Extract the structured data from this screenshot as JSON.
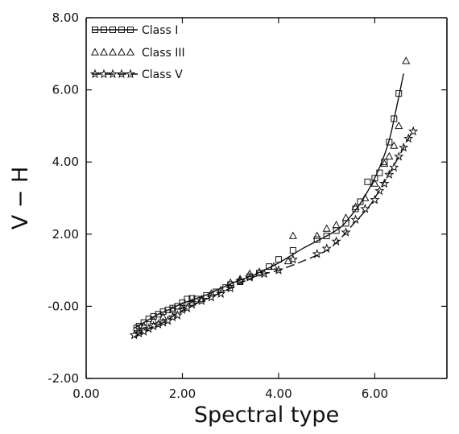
{
  "chart_data": {
    "type": "scatter",
    "title": "",
    "xlabel": "Spectral type",
    "ylabel": "V − H",
    "xlim": [
      0,
      7.5
    ],
    "ylim": [
      -2,
      8
    ],
    "xticks": [
      {
        "value": 0,
        "label": "0.00"
      },
      {
        "value": 2,
        "label": "2.00"
      },
      {
        "value": 4,
        "label": "4.00"
      },
      {
        "value": 6,
        "label": "6.00"
      }
    ],
    "yticks": [
      {
        "value": -2,
        "label": "-2.00"
      },
      {
        "value": 0,
        "label": "-0.00"
      },
      {
        "value": 2,
        "label": "2.00"
      },
      {
        "value": 4,
        "label": "4.00"
      },
      {
        "value": 6,
        "label": "6.00"
      },
      {
        "value": 8,
        "label": "8.00"
      }
    ],
    "grid": false,
    "legend_position": "top-left",
    "series": [
      {
        "name": "Class I",
        "marker": "square",
        "points": [
          [
            1.05,
            -0.6
          ],
          [
            1.1,
            -0.55
          ],
          [
            1.2,
            -0.45
          ],
          [
            1.3,
            -0.35
          ],
          [
            1.4,
            -0.28
          ],
          [
            1.5,
            -0.22
          ],
          [
            1.6,
            -0.15
          ],
          [
            1.7,
            -0.1
          ],
          [
            1.8,
            -0.05
          ],
          [
            1.9,
            0.0
          ],
          [
            2.0,
            0.1
          ],
          [
            2.1,
            0.2
          ],
          [
            2.2,
            0.22
          ],
          [
            2.3,
            0.2
          ],
          [
            2.5,
            0.3
          ],
          [
            2.7,
            0.4
          ],
          [
            2.9,
            0.52
          ],
          [
            3.0,
            0.6
          ],
          [
            3.2,
            0.68
          ],
          [
            3.4,
            0.82
          ],
          [
            3.6,
            0.92
          ],
          [
            3.8,
            1.1
          ],
          [
            4.0,
            1.3
          ],
          [
            4.3,
            1.55
          ],
          [
            4.8,
            1.85
          ],
          [
            5.0,
            1.95
          ],
          [
            5.2,
            2.1
          ],
          [
            5.4,
            2.3
          ],
          [
            5.6,
            2.7
          ],
          [
            5.7,
            2.9
          ],
          [
            5.85,
            3.45
          ],
          [
            6.0,
            3.55
          ],
          [
            6.1,
            3.7
          ],
          [
            6.2,
            4.0
          ],
          [
            6.3,
            4.55
          ],
          [
            6.4,
            5.2
          ],
          [
            6.5,
            5.9
          ]
        ]
      },
      {
        "name": "Class III",
        "marker": "triangle",
        "points": [
          [
            1.1,
            -0.65
          ],
          [
            1.2,
            -0.55
          ],
          [
            1.4,
            -0.4
          ],
          [
            1.6,
            -0.3
          ],
          [
            1.8,
            -0.1
          ],
          [
            2.0,
            0.0
          ],
          [
            2.2,
            0.1
          ],
          [
            2.4,
            0.2
          ],
          [
            2.6,
            0.35
          ],
          [
            2.8,
            0.45
          ],
          [
            3.0,
            0.65
          ],
          [
            3.2,
            0.75
          ],
          [
            3.4,
            0.9
          ],
          [
            3.6,
            0.95
          ],
          [
            3.9,
            1.1
          ],
          [
            4.2,
            1.25
          ],
          [
            4.3,
            1.95
          ],
          [
            4.8,
            1.95
          ],
          [
            5.0,
            2.15
          ],
          [
            5.2,
            2.25
          ],
          [
            5.4,
            2.45
          ],
          [
            5.6,
            2.75
          ],
          [
            5.8,
            3.0
          ],
          [
            6.0,
            3.4
          ],
          [
            6.2,
            3.95
          ],
          [
            6.3,
            4.15
          ],
          [
            6.4,
            4.45
          ],
          [
            6.5,
            5.0
          ],
          [
            6.65,
            6.8
          ]
        ]
      },
      {
        "name": "Class V",
        "marker": "star",
        "points": [
          [
            1.0,
            -0.8
          ],
          [
            1.1,
            -0.75
          ],
          [
            1.2,
            -0.7
          ],
          [
            1.3,
            -0.62
          ],
          [
            1.4,
            -0.55
          ],
          [
            1.5,
            -0.5
          ],
          [
            1.6,
            -0.45
          ],
          [
            1.7,
            -0.4
          ],
          [
            1.8,
            -0.3
          ],
          [
            1.9,
            -0.25
          ],
          [
            2.0,
            -0.1
          ],
          [
            2.1,
            -0.05
          ],
          [
            2.2,
            0.05
          ],
          [
            2.4,
            0.15
          ],
          [
            2.6,
            0.25
          ],
          [
            2.8,
            0.35
          ],
          [
            3.0,
            0.5
          ],
          [
            3.2,
            0.7
          ],
          [
            3.4,
            0.8
          ],
          [
            3.7,
            0.9
          ],
          [
            4.0,
            1.0
          ],
          [
            4.3,
            1.3
          ],
          [
            4.8,
            1.45
          ],
          [
            5.0,
            1.6
          ],
          [
            5.2,
            1.8
          ],
          [
            5.4,
            2.05
          ],
          [
            5.6,
            2.4
          ],
          [
            5.8,
            2.7
          ],
          [
            6.0,
            2.95
          ],
          [
            6.1,
            3.2
          ],
          [
            6.2,
            3.4
          ],
          [
            6.3,
            3.65
          ],
          [
            6.4,
            3.85
          ],
          [
            6.5,
            4.15
          ],
          [
            6.6,
            4.4
          ],
          [
            6.7,
            4.65
          ],
          [
            6.8,
            4.85
          ]
        ]
      }
    ],
    "fits": [
      {
        "style": "solid",
        "points": [
          [
            1.0,
            -0.6
          ],
          [
            1.2,
            -0.45
          ],
          [
            1.5,
            -0.22
          ],
          [
            1.8,
            -0.05
          ],
          [
            2.0,
            0.08
          ],
          [
            2.5,
            0.32
          ],
          [
            3.0,
            0.62
          ],
          [
            3.5,
            0.88
          ],
          [
            4.0,
            1.2
          ],
          [
            4.5,
            1.6
          ],
          [
            5.0,
            1.95
          ],
          [
            5.3,
            2.2
          ],
          [
            5.5,
            2.5
          ],
          [
            5.7,
            2.85
          ],
          [
            5.9,
            3.3
          ],
          [
            6.1,
            3.85
          ],
          [
            6.3,
            4.6
          ],
          [
            6.45,
            5.5
          ],
          [
            6.6,
            6.45
          ]
        ]
      },
      {
        "style": "dashed",
        "points": [
          [
            1.0,
            -0.85
          ],
          [
            1.3,
            -0.62
          ],
          [
            1.6,
            -0.45
          ],
          [
            2.0,
            -0.12
          ],
          [
            2.5,
            0.2
          ],
          [
            3.0,
            0.5
          ],
          [
            3.5,
            0.82
          ],
          [
            4.0,
            1.0
          ],
          [
            4.5,
            1.25
          ],
          [
            5.0,
            1.55
          ],
          [
            5.3,
            1.9
          ],
          [
            5.6,
            2.35
          ],
          [
            5.9,
            2.8
          ],
          [
            6.2,
            3.45
          ],
          [
            6.5,
            4.15
          ],
          [
            6.8,
            4.9
          ]
        ]
      }
    ]
  }
}
